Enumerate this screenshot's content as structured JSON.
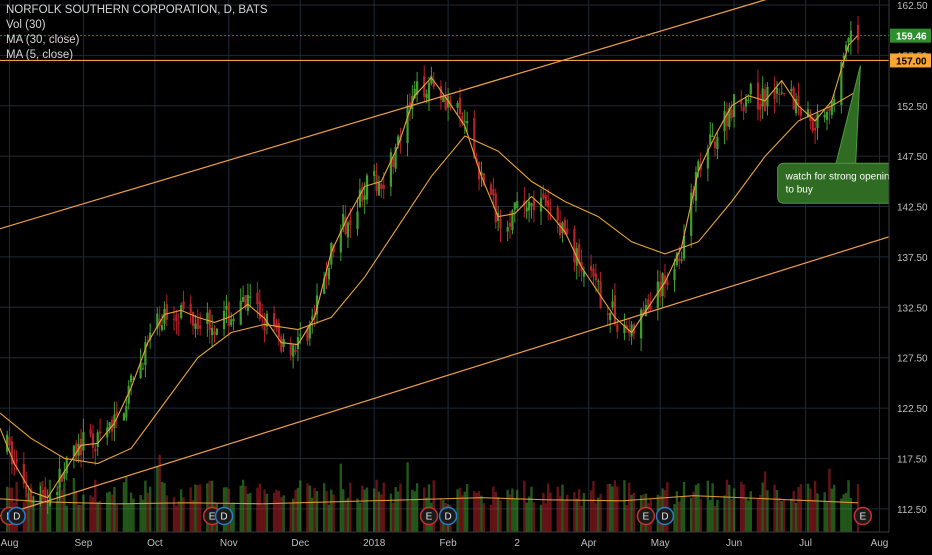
{
  "header": {
    "title": "NORFOLK SOUTHERN CORPORATION, D, BATS",
    "indicators": [
      "Vol (30)",
      "MA (30, close)",
      "MA (5, close)"
    ]
  },
  "colors": {
    "background": "#000000",
    "grid": "#1e2a36",
    "up": "#3f9e2f",
    "down": "#b8222a",
    "ma": "#e8a33a",
    "trendline": "#f0a04b",
    "last_price_tag": "#2f8f2f",
    "level_tag": "#f7a534",
    "callout": "#2f6b22",
    "event_badge": "#c9322f",
    "dividend_badge": "#2a7dc8"
  },
  "annotation": {
    "text_line1": "watch for strong opening",
    "text_line2": "to buy"
  },
  "price_tags": {
    "last": "159.46",
    "level": "157.00"
  },
  "badges": {
    "earnings": "E",
    "dividend": "D",
    "sequence": [
      {
        "label": "E",
        "kind": "earnings",
        "x": "2017-08-01"
      },
      {
        "label": "D",
        "kind": "dividend",
        "x": "2017-08-04"
      },
      {
        "label": "E",
        "kind": "earnings",
        "x": "2017-10-25"
      },
      {
        "label": "D",
        "kind": "dividend",
        "x": "2017-10-30"
      },
      {
        "label": "E",
        "kind": "earnings",
        "x": "2018-01-24"
      },
      {
        "label": "D",
        "kind": "dividend",
        "x": "2018-02-01"
      },
      {
        "label": "E",
        "kind": "earnings",
        "x": "2018-04-25"
      },
      {
        "label": "D",
        "kind": "dividend",
        "x": "2018-05-03"
      },
      {
        "label": "E",
        "kind": "earnings",
        "x": "2018-07-25"
      }
    ]
  },
  "chart_data": {
    "type": "line",
    "title": "NORFOLK SOUTHERN CORPORATION, D, BATS",
    "x_axis": {
      "type": "date",
      "range": [
        "2017-07-28",
        "2018-08-05"
      ],
      "ticks": [
        {
          "date": "2017-08-01",
          "label": "Aug"
        },
        {
          "date": "2017-09-01",
          "label": "Sep"
        },
        {
          "date": "2017-10-01",
          "label": "Oct"
        },
        {
          "date": "2017-11-01",
          "label": "Nov"
        },
        {
          "date": "2017-12-01",
          "label": "Dec"
        },
        {
          "date": "2018-01-01",
          "label": "2018"
        },
        {
          "date": "2018-02-01",
          "label": "Feb"
        },
        {
          "date": "2018-03-02",
          "label": "2"
        },
        {
          "date": "2018-04-01",
          "label": "Apr"
        },
        {
          "date": "2018-05-01",
          "label": "May"
        },
        {
          "date": "2018-06-01",
          "label": "Jun"
        },
        {
          "date": "2018-07-01",
          "label": "Jul"
        },
        {
          "date": "2018-08-01",
          "label": "Aug"
        }
      ]
    },
    "y_axis": {
      "range": [
        110.2,
        163
      ],
      "ticks": [
        112.5,
        117.5,
        122.5,
        127.5,
        132.5,
        137.5,
        142.5,
        147.5,
        152.5,
        157.5,
        162.5
      ],
      "tick_labels": [
        "112.50",
        "117.50",
        "122.50",
        "127.50",
        "132.50",
        "137.50",
        "142.50",
        "147.50",
        "152.50",
        "157.50",
        "162.50"
      ],
      "position": "right"
    },
    "grid": true,
    "series": [
      {
        "name": "MA (5, close)",
        "kind": "moving-average",
        "points": [
          [
            "2017-07-28",
            120.5
          ],
          [
            "2017-08-03",
            117.0
          ],
          [
            "2017-08-10",
            114.2
          ],
          [
            "2017-08-17",
            113.6
          ],
          [
            "2017-08-24",
            116.2
          ],
          [
            "2017-08-31",
            118.8
          ],
          [
            "2017-09-07",
            119.0
          ],
          [
            "2017-09-14",
            121.0
          ],
          [
            "2017-09-21",
            124.5
          ],
          [
            "2017-09-28",
            129.0
          ],
          [
            "2017-10-05",
            131.8
          ],
          [
            "2017-10-12",
            132.2
          ],
          [
            "2017-10-19",
            131.5
          ],
          [
            "2017-10-26",
            131.0
          ],
          [
            "2017-11-02",
            131.6
          ],
          [
            "2017-11-09",
            132.8
          ],
          [
            "2017-11-16",
            131.4
          ],
          [
            "2017-11-23",
            129.0
          ],
          [
            "2017-11-30",
            128.8
          ],
          [
            "2017-12-07",
            131.5
          ],
          [
            "2017-12-14",
            138.0
          ],
          [
            "2017-12-21",
            141.5
          ],
          [
            "2017-12-28",
            144.5
          ],
          [
            "2018-01-04",
            145.0
          ],
          [
            "2018-01-11",
            148.5
          ],
          [
            "2018-01-18",
            153.5
          ],
          [
            "2018-01-25",
            155.3
          ],
          [
            "2018-02-01",
            153.0
          ],
          [
            "2018-02-08",
            150.5
          ],
          [
            "2018-02-15",
            145.5
          ],
          [
            "2018-02-22",
            141.5
          ],
          [
            "2018-03-01",
            141.8
          ],
          [
            "2018-03-08",
            143.5
          ],
          [
            "2018-03-15",
            142.0
          ],
          [
            "2018-03-22",
            140.0
          ],
          [
            "2018-03-29",
            136.5
          ],
          [
            "2018-04-05",
            134.0
          ],
          [
            "2018-04-12",
            131.5
          ],
          [
            "2018-04-19",
            130.0
          ],
          [
            "2018-04-26",
            132.5
          ],
          [
            "2018-05-03",
            135.0
          ],
          [
            "2018-05-10",
            138.5
          ],
          [
            "2018-05-17",
            146.0
          ],
          [
            "2018-05-24",
            149.5
          ],
          [
            "2018-05-31",
            152.5
          ],
          [
            "2018-06-07",
            153.5
          ],
          [
            "2018-06-14",
            153.0
          ],
          [
            "2018-06-21",
            155.0
          ],
          [
            "2018-06-28",
            152.5
          ],
          [
            "2018-07-05",
            151.0
          ],
          [
            "2018-07-12",
            153.0
          ],
          [
            "2018-07-19",
            158.5
          ],
          [
            "2018-07-23",
            159.5
          ]
        ]
      },
      {
        "name": "MA (30, close)",
        "kind": "moving-average",
        "points": [
          [
            "2017-07-28",
            122.0
          ],
          [
            "2017-08-10",
            119.5
          ],
          [
            "2017-08-24",
            117.5
          ],
          [
            "2017-09-07",
            117.0
          ],
          [
            "2017-09-21",
            118.5
          ],
          [
            "2017-10-05",
            123.0
          ],
          [
            "2017-10-19",
            127.5
          ],
          [
            "2017-11-02",
            130.0
          ],
          [
            "2017-11-16",
            130.8
          ],
          [
            "2017-11-30",
            130.3
          ],
          [
            "2017-12-14",
            131.5
          ],
          [
            "2017-12-28",
            135.5
          ],
          [
            "2018-01-11",
            140.5
          ],
          [
            "2018-01-25",
            145.5
          ],
          [
            "2018-02-08",
            149.5
          ],
          [
            "2018-02-22",
            148.0
          ],
          [
            "2018-03-08",
            145.0
          ],
          [
            "2018-03-22",
            143.0
          ],
          [
            "2018-04-05",
            141.5
          ],
          [
            "2018-04-19",
            139.0
          ],
          [
            "2018-05-03",
            137.8
          ],
          [
            "2018-05-17",
            139.0
          ],
          [
            "2018-05-31",
            143.0
          ],
          [
            "2018-06-14",
            147.5
          ],
          [
            "2018-06-28",
            151.0
          ],
          [
            "2018-07-12",
            152.5
          ],
          [
            "2018-07-23",
            154.0
          ]
        ]
      },
      {
        "name": "Vol (30)",
        "kind": "volume-average",
        "points": [
          [
            "2017-07-28",
            113.5
          ],
          [
            "2017-08-15",
            113.2
          ],
          [
            "2017-09-15",
            113.0
          ],
          [
            "2017-10-15",
            113.1
          ],
          [
            "2017-11-15",
            113.0
          ],
          [
            "2017-12-15",
            113.2
          ],
          [
            "2018-01-15",
            113.4
          ],
          [
            "2018-02-15",
            113.6
          ],
          [
            "2018-03-15",
            113.4
          ],
          [
            "2018-04-15",
            113.3
          ],
          [
            "2018-05-15",
            113.8
          ],
          [
            "2018-06-15",
            113.5
          ],
          [
            "2018-07-23",
            113.1
          ]
        ]
      }
    ],
    "trendlines": [
      {
        "name": "upper channel",
        "points": [
          [
            "2017-07-28",
            140.3
          ],
          [
            "2018-06-18",
            163.3
          ]
        ]
      },
      {
        "name": "lower channel",
        "points": [
          [
            "2017-07-28",
            111.8
          ],
          [
            "2018-08-05",
            139.5
          ]
        ]
      },
      {
        "name": "level",
        "points": [
          [
            "2017-07-28",
            157.0
          ],
          [
            "2018-08-05",
            157.0
          ]
        ],
        "value": 157.0
      }
    ],
    "last_price": 159.46,
    "level": 157.0,
    "annotation": {
      "date": "2018-06-18",
      "value": 146.5,
      "target_date": "2018-07-24",
      "target_value": 156.5
    }
  }
}
